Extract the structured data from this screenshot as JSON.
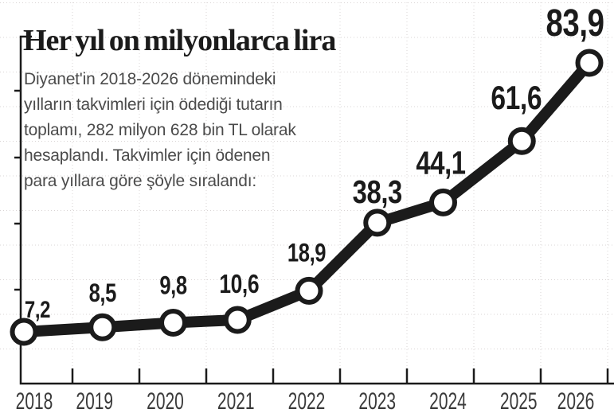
{
  "header": {
    "title": "Her yıl on milyonlarca lira"
  },
  "intro": {
    "lines": [
      "Diyanet'in 2018-2026 dönemindeki",
      "yılların takvimleri için ödediği tutarın",
      "toplamı, 282 milyon 628 bin TL olarak",
      "hesaplandı. Takvimler için ödenen",
      "para yıllara göre şöyle sıralandı:"
    ]
  },
  "chart_data": {
    "type": "line",
    "title": "Her yıl on milyonlarca lira",
    "categories": [
      "2018",
      "2019",
      "2020",
      "2021",
      "2022",
      "2023",
      "2024",
      "2025",
      "2026"
    ],
    "values": [
      7.2,
      8.5,
      9.8,
      10.6,
      18.9,
      38.3,
      44.1,
      61.6,
      83.9
    ],
    "value_labels": [
      "7,2",
      "8,5",
      "9,8",
      "10,6",
      "18,9",
      "38,3",
      "44,1",
      "61,6",
      "83,9"
    ],
    "xlabel": "",
    "ylabel": "",
    "ylim": [
      0,
      100
    ],
    "grid": true,
    "legend": false,
    "marker": "open-circle"
  },
  "colors": {
    "ink": "#1b1b1b",
    "body_text": "#4b4b4b",
    "grid": "#d9d4d4",
    "year_label": "#3a3a3a",
    "marker_fill": "#ffffff",
    "background": "#ffffff"
  }
}
